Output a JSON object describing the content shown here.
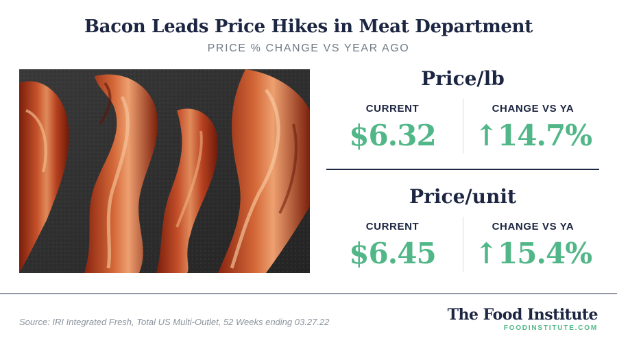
{
  "header": {
    "title": "Bacon Leads Price Hikes in Meat Department",
    "subtitle": "PRICE % CHANGE VS YEAR AGO"
  },
  "price_per_lb": {
    "heading": "Price/lb",
    "current_label": "CURRENT",
    "current_value": "$6.32",
    "change_label": "CHANGE VS YA",
    "change_value": "↑14.7%"
  },
  "price_per_unit": {
    "heading": "Price/unit",
    "current_label": "CURRENT",
    "current_value": "$6.45",
    "change_label": "CHANGE VS YA",
    "change_value": "↑15.4%"
  },
  "footer": {
    "source": "Source: IRI Integrated Fresh, Total US Multi-Outlet, 52 Weeks ending 03.27.22",
    "brand_name": "The Food Institute",
    "brand_url": "FOODINSTITUTE.COM"
  },
  "colors": {
    "navy": "#1c2541",
    "accent_green": "#52b788",
    "gray_text": "#6f7a86"
  }
}
